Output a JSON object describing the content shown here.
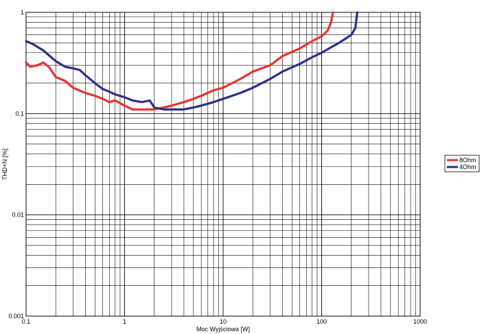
{
  "chart_data": {
    "type": "line",
    "title": "",
    "xlabel": "Moc Wyjściowa [W]",
    "ylabel": "THD+N [%]",
    "x_scale": "log",
    "y_scale": "log",
    "xlim": [
      0.1,
      1000
    ],
    "ylim": [
      0.001,
      1
    ],
    "x_ticks": [
      "0.1",
      "1",
      "10",
      "100",
      "1000"
    ],
    "y_ticks": [
      "0.001",
      "0.01",
      "0.1",
      "1"
    ],
    "grid": true,
    "legend_position": "right",
    "series": [
      {
        "name": "8Ohm",
        "color": "#e8332e",
        "x": [
          0.1,
          0.11,
          0.13,
          0.15,
          0.17,
          0.2,
          0.25,
          0.3,
          0.4,
          0.5,
          0.6,
          0.7,
          0.8,
          1.0,
          1.2,
          1.5,
          2.0,
          2.5,
          3.0,
          4.0,
          5.0,
          6.0,
          8.0,
          10,
          15,
          20,
          30,
          40,
          60,
          80,
          100,
          115,
          125,
          130
        ],
        "values": [
          0.32,
          0.29,
          0.3,
          0.32,
          0.29,
          0.23,
          0.21,
          0.18,
          0.16,
          0.15,
          0.14,
          0.13,
          0.135,
          0.12,
          0.11,
          0.11,
          0.11,
          0.115,
          0.12,
          0.13,
          0.14,
          0.15,
          0.17,
          0.18,
          0.22,
          0.26,
          0.3,
          0.37,
          0.44,
          0.52,
          0.58,
          0.66,
          0.8,
          1.0
        ]
      },
      {
        "name": "4Ohm",
        "color": "#2b2f8c",
        "x": [
          0.1,
          0.12,
          0.15,
          0.18,
          0.2,
          0.25,
          0.3,
          0.35,
          0.4,
          0.5,
          0.6,
          0.7,
          0.8,
          1.0,
          1.2,
          1.5,
          1.8,
          2.0,
          2.5,
          3.0,
          4.0,
          5.0,
          6.0,
          8.0,
          10,
          15,
          20,
          30,
          40,
          60,
          80,
          100,
          150,
          180,
          200,
          220,
          230
        ],
        "values": [
          0.52,
          0.48,
          0.42,
          0.36,
          0.33,
          0.29,
          0.28,
          0.27,
          0.24,
          0.2,
          0.175,
          0.165,
          0.155,
          0.145,
          0.135,
          0.13,
          0.135,
          0.115,
          0.11,
          0.11,
          0.11,
          0.115,
          0.12,
          0.13,
          0.14,
          0.16,
          0.18,
          0.22,
          0.26,
          0.31,
          0.36,
          0.4,
          0.5,
          0.56,
          0.6,
          0.7,
          1.0
        ]
      }
    ]
  }
}
